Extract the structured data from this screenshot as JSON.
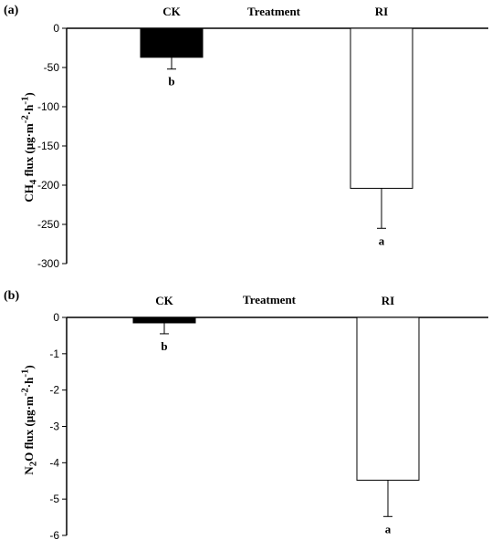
{
  "chart_data": [
    {
      "panel_label": "(a)",
      "type": "bar",
      "xlabel": "Treatment",
      "ylabel": {
        "pre": "CH",
        "sub1": "4",
        "mid": " flux (μg·m",
        "sup1": "-2",
        "mid2": "·h",
        "sup2": "-1",
        "post": ")"
      },
      "ylim": [
        -300,
        0
      ],
      "yticks": [
        0,
        -50,
        -100,
        -150,
        -200,
        -250,
        -300
      ],
      "categories": [
        "CK",
        "RI"
      ],
      "series": [
        {
          "values": [
            -37,
            -204
          ],
          "errors": [
            15,
            51
          ],
          "fills": [
            "#000000",
            "#ffffff"
          ]
        }
      ],
      "significance": [
        "b",
        "a"
      ]
    },
    {
      "panel_label": "(b)",
      "type": "bar",
      "xlabel": "Treatment",
      "ylabel": {
        "pre": "N",
        "sub1": "2",
        "mid": "O flux (μg·m",
        "sup1": "-2",
        "mid2": "·h",
        "sup2": "-1",
        "post": ")"
      },
      "ylim": [
        -6,
        0
      ],
      "yticks": [
        0,
        -1,
        -2,
        -3,
        -4,
        -5,
        -6
      ],
      "categories": [
        "CK",
        "RI"
      ],
      "series": [
        {
          "values": [
            -0.15,
            -4.48
          ],
          "errors": [
            0.3,
            1.0
          ],
          "fills": [
            "#000000",
            "#ffffff"
          ]
        }
      ],
      "significance": [
        "b",
        "a"
      ]
    }
  ]
}
